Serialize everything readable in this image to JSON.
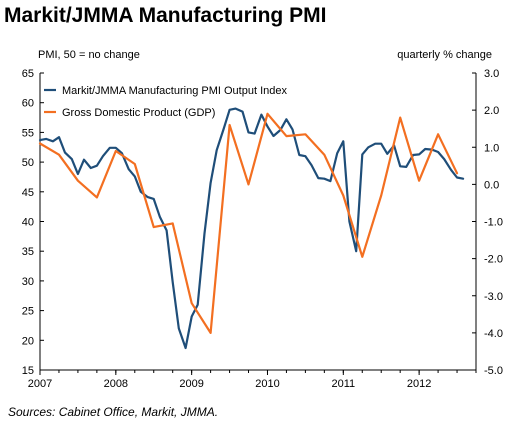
{
  "title": "Markit/JMMA Manufacturing PMI",
  "left_axis_note": "PMI, 50 = no change",
  "right_axis_note": "quarterly % change",
  "source": "Sources: Cabinet Office, Markit, JMMA.",
  "chart_data": {
    "type": "line",
    "title": "Markit/JMMA Manufacturing PMI",
    "ylabel": "PMI, 50 = no change",
    "y2label": "quarterly % change",
    "x_ticks": [
      "2007",
      "2008",
      "2009",
      "2010",
      "2011",
      "2012"
    ],
    "x_range": [
      2007.0,
      2012.75
    ],
    "ylim": [
      15,
      65
    ],
    "y_ticks": [
      15,
      20,
      25,
      30,
      35,
      40,
      45,
      50,
      55,
      60,
      65
    ],
    "y2lim": [
      -5.0,
      3.0
    ],
    "y2_ticks": [
      "-5.0",
      "-4.0",
      "-3.0",
      "-2.0",
      "-1.0",
      "0.0",
      "1.0",
      "2.0",
      "3.0"
    ],
    "grid": false,
    "legend_position": "top-left",
    "colors": {
      "pmi": "#1f4e79",
      "gdp": "#f36f21"
    },
    "series": [
      {
        "name": "Markit/JMMA Manufacturing PMI Output Index",
        "axis": "left",
        "color": "#1f4e79",
        "x": [
          2007.0,
          2007.08,
          2007.17,
          2007.25,
          2007.33,
          2007.42,
          2007.5,
          2007.58,
          2007.67,
          2007.75,
          2007.83,
          2007.92,
          2008.0,
          2008.08,
          2008.17,
          2008.25,
          2008.33,
          2008.42,
          2008.5,
          2008.58,
          2008.67,
          2008.75,
          2008.83,
          2008.92,
          2009.0,
          2009.08,
          2009.17,
          2009.25,
          2009.33,
          2009.42,
          2009.5,
          2009.58,
          2009.67,
          2009.75,
          2009.83,
          2009.92,
          2010.0,
          2010.08,
          2010.17,
          2010.25,
          2010.33,
          2010.42,
          2010.5,
          2010.58,
          2010.67,
          2010.75,
          2010.83,
          2010.92,
          2011.0,
          2011.08,
          2011.17,
          2011.25,
          2011.33,
          2011.42,
          2011.5,
          2011.58,
          2011.67,
          2011.75,
          2011.83,
          2011.92,
          2012.0,
          2012.08,
          2012.17,
          2012.25,
          2012.33,
          2012.42,
          2012.5,
          2012.58
        ],
        "values": [
          53.7,
          53.9,
          53.5,
          54.2,
          51.6,
          50.5,
          48.0,
          50.4,
          49.0,
          49.4,
          51.0,
          52.4,
          52.4,
          51.5,
          48.8,
          47.6,
          45.0,
          44.1,
          43.8,
          40.8,
          38.5,
          29.8,
          22.0,
          18.7,
          24.0,
          26.0,
          38.0,
          46.5,
          52.0,
          55.5,
          58.8,
          59.0,
          58.5,
          55.0,
          54.8,
          58.0,
          56.0,
          54.4,
          55.4,
          57.2,
          55.5,
          51.2,
          51.0,
          49.5,
          47.3,
          47.2,
          46.8,
          51.5,
          53.5,
          40.0,
          35.0,
          51.3,
          52.5,
          53.1,
          53.1,
          51.4,
          52.8,
          49.3,
          49.2,
          51.2,
          51.3,
          52.2,
          52.1,
          51.7,
          50.5,
          48.7,
          47.4,
          47.2
        ]
      },
      {
        "name": "Gross Domestic Product (GDP)",
        "axis": "right",
        "color": "#f36f21",
        "x": [
          2007.0,
          2007.25,
          2007.5,
          2007.75,
          2008.0,
          2008.25,
          2008.5,
          2008.75,
          2009.0,
          2009.25,
          2009.5,
          2009.75,
          2010.0,
          2010.25,
          2010.5,
          2010.75,
          2011.0,
          2011.25,
          2011.5,
          2011.75,
          2012.0,
          2012.25,
          2012.5
        ],
        "values": [
          1.1,
          0.8,
          0.1,
          -0.35,
          0.9,
          0.55,
          -1.15,
          -1.05,
          -3.2,
          -4.0,
          1.6,
          0.0,
          1.9,
          1.3,
          1.35,
          0.8,
          -0.3,
          -1.95,
          -0.3,
          1.8,
          0.1,
          1.35,
          0.3
        ]
      }
    ]
  }
}
